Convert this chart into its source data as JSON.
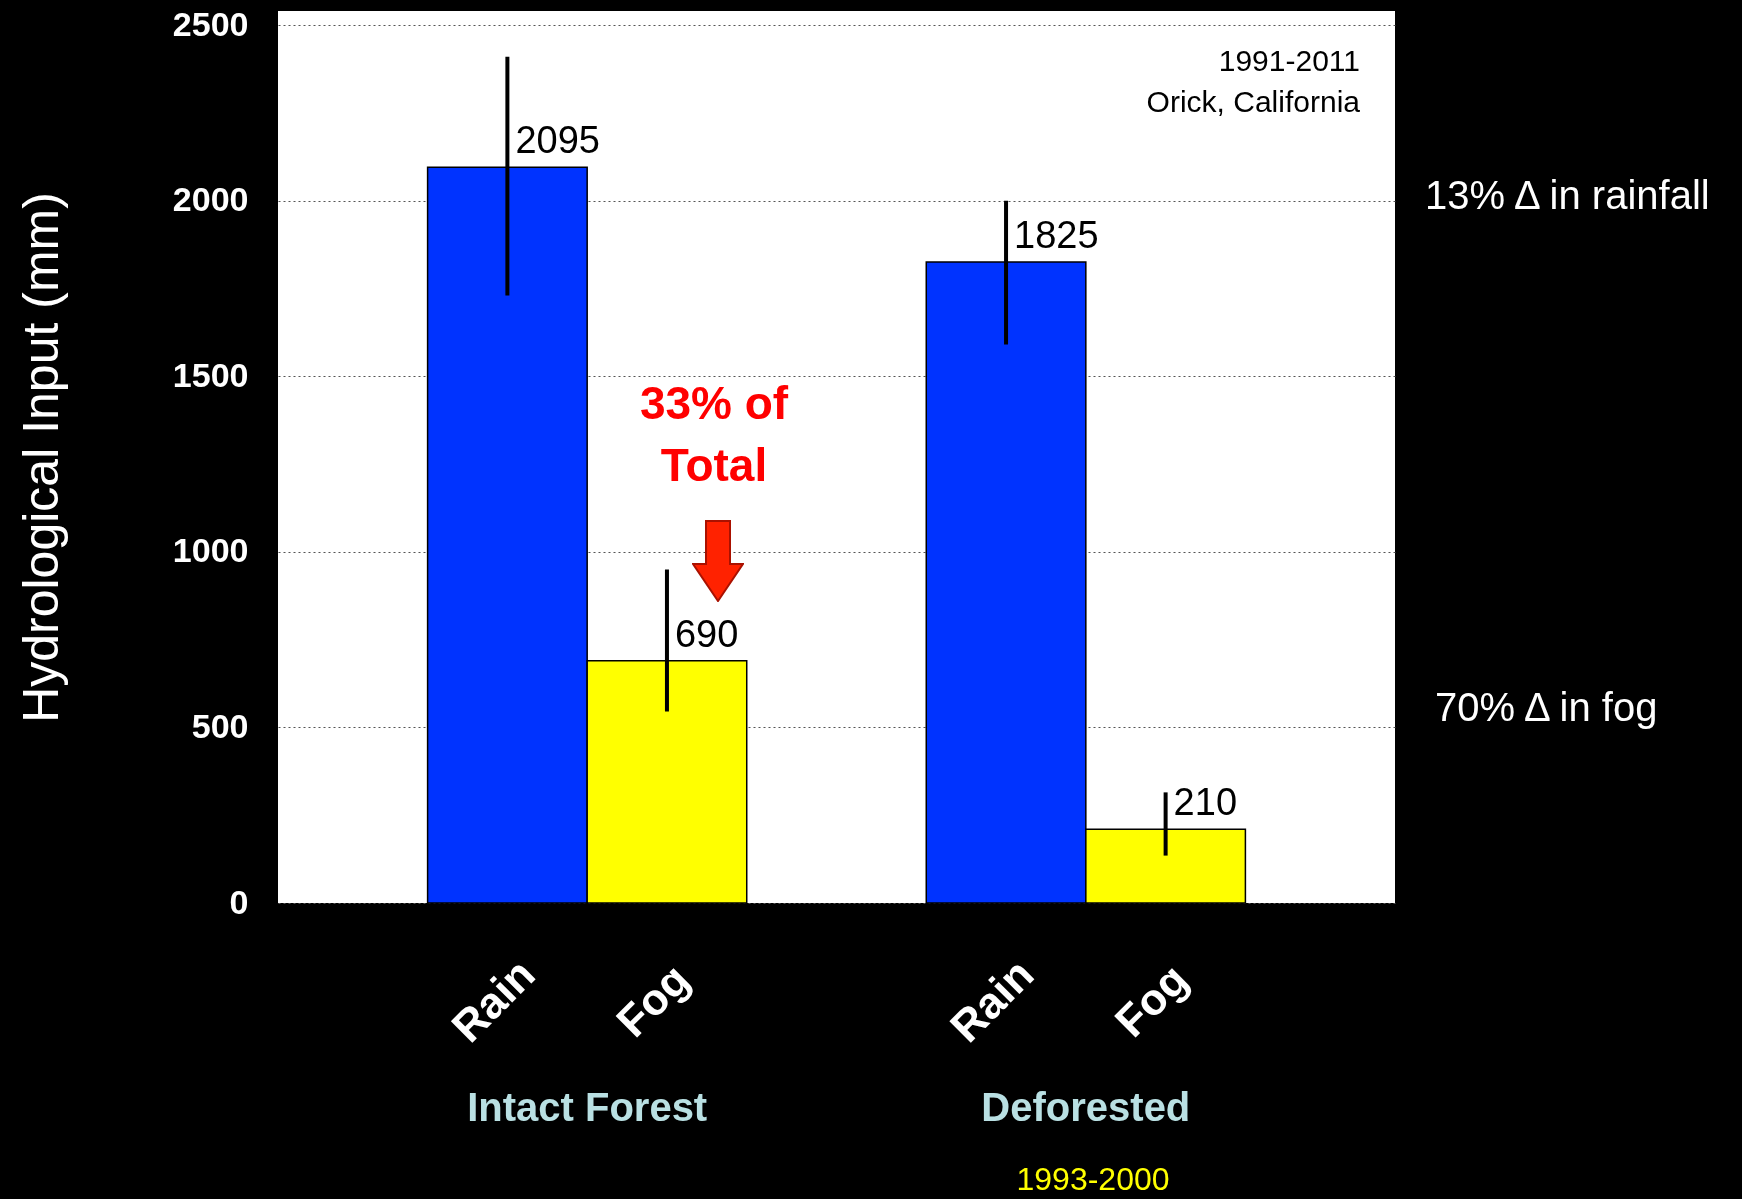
{
  "chart_data": {
    "type": "bar",
    "ylabel": "Hydrological Input (mm)",
    "categories": [
      "Rain",
      "Fog",
      "Rain",
      "Fog"
    ],
    "values": [
      2095,
      690,
      1825,
      210
    ],
    "colors": [
      "#0033ff",
      "#ffff00",
      "#0033ff",
      "#ffff00"
    ],
    "errors": [
      [
        1730,
        2410
      ],
      [
        545,
        950
      ],
      [
        1590,
        2000
      ],
      [
        135,
        315
      ]
    ],
    "data_labels": true,
    "ylim": [
      0,
      2540
    ],
    "yticks": [
      0,
      500,
      1000,
      1500,
      2000,
      2500
    ],
    "grid": "y",
    "annotations": [
      "Intact Forest",
      "Deforested",
      "1993-2000",
      "1991-2011",
      "Orick, California",
      "33% of Total",
      "13% Δ in rainfall",
      "70% Δ in fog"
    ]
  }
}
